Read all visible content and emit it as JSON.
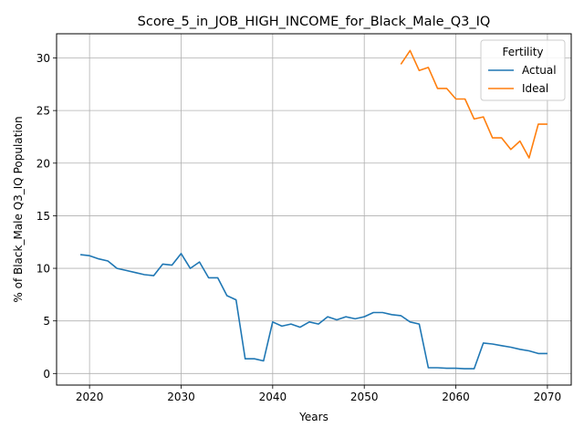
{
  "chart_data": {
    "type": "line",
    "title": "Score_5_in_JOB_HIGH_INCOME_for_Black_Male_Q3_IQ",
    "xlabel": "Years",
    "ylabel": "% of Black_Male Q3_IQ Population",
    "xlim": [
      2016.4,
      2072.6
    ],
    "ylim": [
      -1.1,
      32.3
    ],
    "xticks": [
      2020,
      2030,
      2040,
      2050,
      2060,
      2070
    ],
    "yticks": [
      0,
      5,
      10,
      15,
      20,
      25,
      30
    ],
    "grid": true,
    "legend": {
      "title": "Fertility",
      "placement": "top-right"
    },
    "series": [
      {
        "name": "Actual",
        "color": "#1f77b4",
        "x": [
          2019,
          2020,
          2021,
          2022,
          2023,
          2024,
          2025,
          2026,
          2027,
          2028,
          2029,
          2030,
          2031,
          2032,
          2033,
          2034,
          2035,
          2036,
          2037,
          2038,
          2039,
          2040,
          2041,
          2042,
          2043,
          2044,
          2045,
          2046,
          2047,
          2048,
          2049,
          2050,
          2051,
          2052,
          2053,
          2054,
          2055,
          2056,
          2057,
          2058,
          2059,
          2060,
          2061,
          2062,
          2063,
          2064,
          2065,
          2066,
          2067,
          2068,
          2069,
          2070
        ],
        "y": [
          11.3,
          11.2,
          10.9,
          10.7,
          10.0,
          9.8,
          9.6,
          9.4,
          9.3,
          10.4,
          10.3,
          11.4,
          10.0,
          10.6,
          9.1,
          9.1,
          7.4,
          7.0,
          1.4,
          1.4,
          1.2,
          4.9,
          4.5,
          4.7,
          4.4,
          4.9,
          4.7,
          5.4,
          5.1,
          5.4,
          5.2,
          5.4,
          5.8,
          5.8,
          5.6,
          5.5,
          4.9,
          4.7,
          0.55,
          0.55,
          0.5,
          0.5,
          0.45,
          0.45,
          2.9,
          2.8,
          2.65,
          2.5,
          2.3,
          2.15,
          1.9,
          1.9
        ]
      },
      {
        "name": "Ideal",
        "color": "#ff7f0e",
        "x": [
          2054,
          2055,
          2056,
          2057,
          2058,
          2059,
          2060,
          2061,
          2062,
          2063,
          2064,
          2065,
          2066,
          2067,
          2068,
          2069,
          2070
        ],
        "y": [
          29.4,
          30.7,
          28.8,
          29.1,
          27.1,
          27.1,
          26.1,
          26.1,
          24.2,
          24.4,
          22.4,
          22.4,
          21.3,
          22.1,
          20.5,
          23.7,
          23.7
        ]
      }
    ]
  }
}
